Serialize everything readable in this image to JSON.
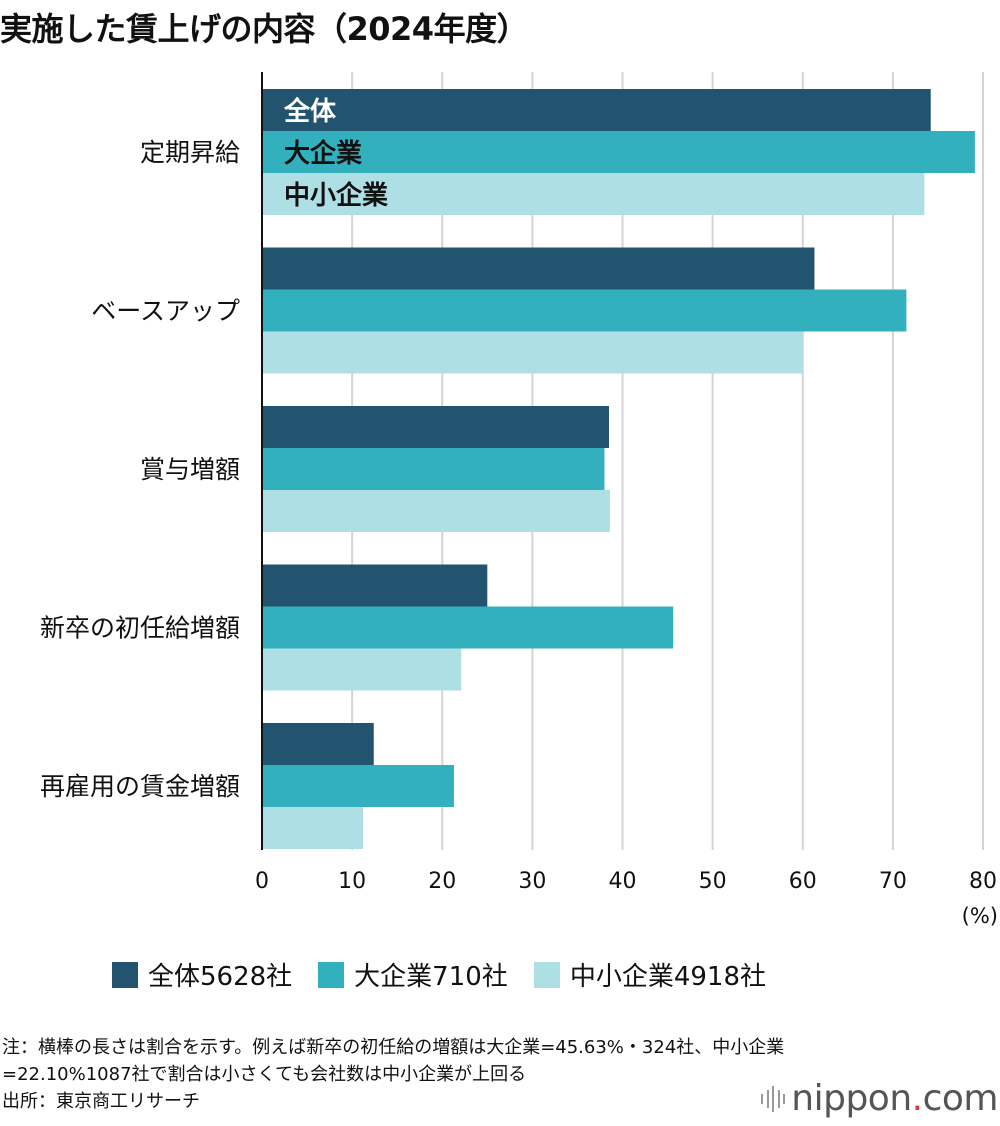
{
  "title": "実施した賃上げの内容（2024年度）",
  "chart_data": {
    "type": "bar",
    "orientation": "horizontal",
    "title": "実施した賃上げの内容（2024年度）",
    "categories": [
      "定期昇給",
      "ベースアップ",
      "賞与増額",
      "新卒の初任給増額",
      "再雇用の賃金増額"
    ],
    "series": [
      {
        "name": "全体5628社",
        "label": "全体",
        "color": "#23546f",
        "values": [
          74.2,
          61.3,
          38.5,
          25.0,
          12.4
        ]
      },
      {
        "name": "大企業710社",
        "label": "大企業",
        "color": "#33b0be",
        "values": [
          79.1,
          71.5,
          38.0,
          45.63,
          21.3
        ]
      },
      {
        "name": "中小企業4918社",
        "label": "中小企業",
        "color": "#aedfe4",
        "values": [
          73.5,
          60.0,
          38.6,
          22.1,
          11.2
        ]
      }
    ],
    "xlim": [
      0,
      80
    ],
    "xticks": [
      "0",
      "10",
      "20",
      "30",
      "40",
      "50",
      "60",
      "70",
      "80"
    ],
    "xunit": "(%)",
    "grid": true,
    "legend": "bottom"
  },
  "notes": [
    "注：横棒の長さは割合を示す。例えば新卒の初任給の増額は大企業=45.63%・324社、中小企業",
    "=22.10%1087社で割合は小さくても会社数は中小企業が上回る",
    "出所：東京商工リサーチ"
  ],
  "logo": {
    "name": "nippon",
    "dot": ".",
    "tld": "com"
  }
}
